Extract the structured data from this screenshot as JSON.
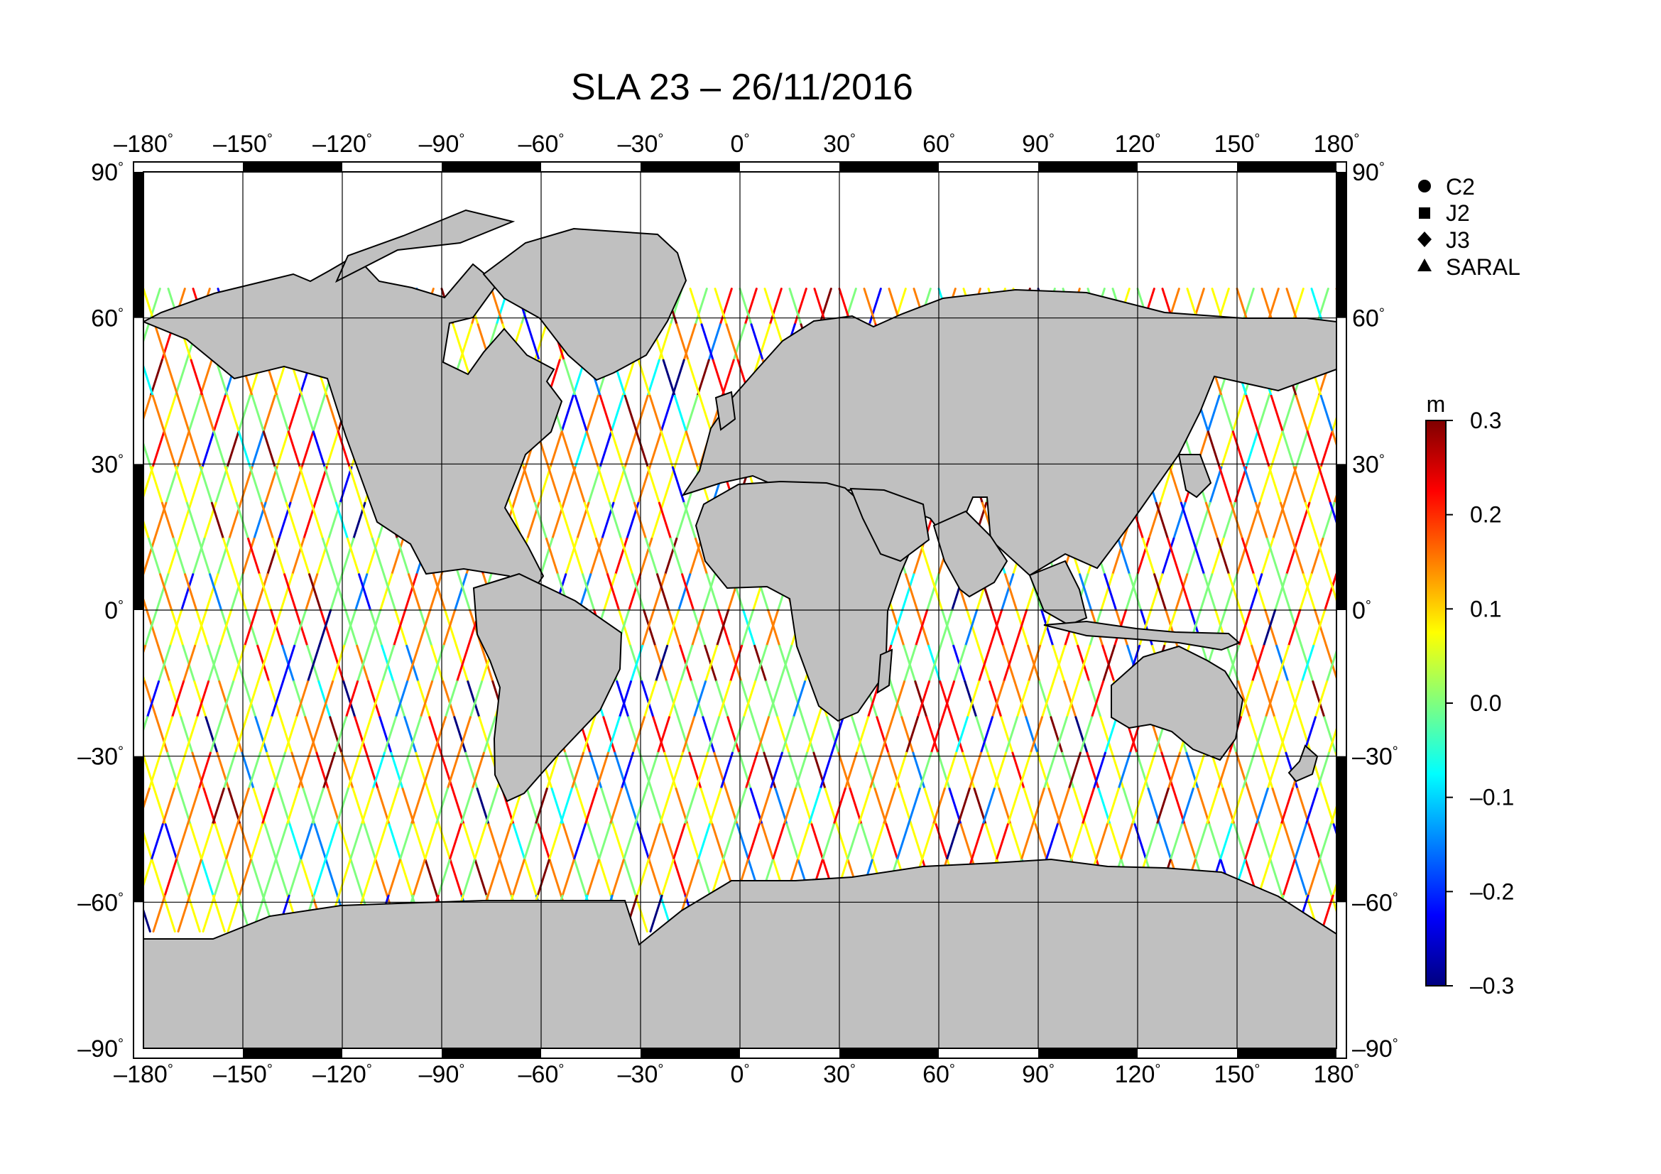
{
  "title": "SLA 23 – 26/11/2016",
  "map": {
    "projection": "equirectangular",
    "lon_range": [
      -180,
      180
    ],
    "lat_range": [
      -90,
      90
    ],
    "grid_interval_deg": 30,
    "land_color": "#c0c0c0",
    "ocean_color": "#ffffff",
    "frame_color": "#000000",
    "degree_symbol": "°",
    "top_ticks": [
      "–180",
      "–150",
      "–120",
      "–90",
      "–60",
      "–30",
      "0",
      "30",
      "60",
      "90",
      "120",
      "150",
      "180"
    ],
    "bottom_ticks": [
      "–180",
      "–150",
      "–120",
      "–90",
      "–60",
      "–30",
      "0",
      "30",
      "60",
      "90",
      "120",
      "150",
      "180"
    ],
    "left_ticks": [
      "90",
      "60",
      "30",
      "0",
      "–30",
      "–60",
      "–90"
    ],
    "right_ticks": [
      "90",
      "60",
      "30",
      "0",
      "–30",
      "–60",
      "–90"
    ]
  },
  "legend": {
    "items": [
      {
        "label": "C2",
        "symbol": "circle-icon"
      },
      {
        "label": "J2",
        "symbol": "square-icon"
      },
      {
        "label": "J3",
        "symbol": "diamond-icon"
      },
      {
        "label": "SARAL",
        "symbol": "triangle-icon"
      }
    ]
  },
  "colorbar": {
    "unit": "m",
    "min": -0.3,
    "max": 0.3,
    "tick_labels": [
      "0.3",
      "0.2",
      "0.1",
      "0.0",
      "–0.1",
      "–0.2",
      "–0.3"
    ],
    "colormap": [
      "#00007f",
      "#0000ff",
      "#007fff",
      "#00ffff",
      "#7fff7f",
      "#ffff00",
      "#ff7f00",
      "#ff0000",
      "#7f0000"
    ]
  },
  "chart_data": {
    "type": "scatter",
    "title": "SLA 23 – 26/11/2016",
    "xlim": [
      -180,
      180
    ],
    "ylim": [
      -90,
      90
    ],
    "value_range": [
      -0.3,
      0.3
    ],
    "value_unit": "m",
    "series": [
      {
        "name": "C2"
      },
      {
        "name": "J2"
      },
      {
        "name": "J3"
      },
      {
        "name": "SARAL"
      }
    ]
  }
}
